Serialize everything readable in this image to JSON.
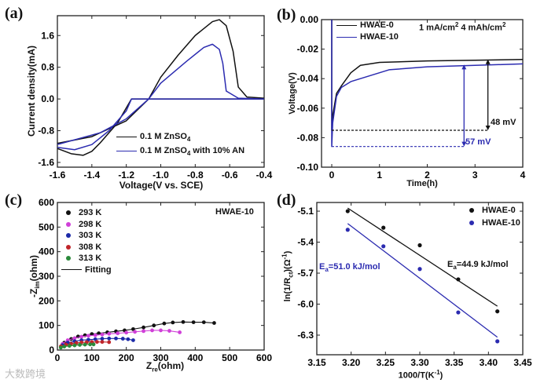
{
  "colors": {
    "black": "#111111",
    "blue": "#2b2bb0",
    "magenta": "#d040d8",
    "navy": "#1c2aa8",
    "red": "#c0252a",
    "green": "#2a8a3a"
  },
  "watermark": "大数跨境",
  "chart_data": [
    {
      "panel": "(a)",
      "type": "line",
      "xlabel": "Voltage(V vs. SCE)",
      "ylabel": "Current density(mA)",
      "xlim": [
        -1.6,
        -0.4
      ],
      "ylim": [
        -1.72,
        2.1
      ],
      "xticks": [
        -1.6,
        -1.4,
        -1.2,
        -1.0,
        -0.8,
        -0.6,
        -0.4
      ],
      "xtick_labels": [
        "-1.6",
        "-1.4",
        "-1.2",
        "-1.0",
        "-0.8",
        "-0.6",
        "-0.4"
      ],
      "yticks": [
        -1.6,
        -0.8,
        0,
        0.8,
        1.6
      ],
      "ytick_labels": [
        "-1.6",
        "-0.8",
        "0.0",
        "0.8",
        "1.6"
      ],
      "legend": [
        {
          "text": "0.1 M ZnSO",
          "sub": "4",
          "suffix": ""
        },
        {
          "text": "0.1 M ZnSO",
          "sub": "4",
          "suffix": " with 10% AN"
        }
      ],
      "series": [
        {
          "name": "0.1 M ZnSO4",
          "color": "#111111",
          "x": [
            -1.6,
            -1.52,
            -1.45,
            -1.4,
            -1.35,
            -1.25,
            -1.17,
            -0.8,
            -0.4,
            -0.4,
            -0.5,
            -0.55,
            -0.58,
            -0.62,
            -0.66,
            -0.7,
            -0.8,
            -0.9,
            -1.0,
            -1.07,
            -1.2,
            -1.4,
            -1.6
          ],
          "y": [
            -1.25,
            -1.38,
            -1.42,
            -1.32,
            -1.1,
            -0.6,
            0,
            0,
            0,
            0.02,
            0.05,
            0.3,
            1.2,
            1.85,
            2.0,
            1.95,
            1.6,
            1.1,
            0.55,
            0,
            -0.55,
            -0.95,
            -1.12
          ]
        },
        {
          "name": "0.1 M ZnSO4 with 10% AN",
          "color": "#2b2bb0",
          "x": [
            -1.6,
            -1.5,
            -1.4,
            -1.3,
            -1.2,
            -1.17,
            -0.8,
            -0.4,
            -0.4,
            -0.55,
            -0.62,
            -0.64,
            -0.66,
            -0.7,
            -0.75,
            -0.85,
            -1.0,
            -1.07,
            -1.2,
            -1.35,
            -1.6
          ],
          "y": [
            -1.22,
            -1.28,
            -1.15,
            -0.8,
            -0.3,
            0,
            0,
            0,
            0,
            0.02,
            0.2,
            0.9,
            1.25,
            1.38,
            1.3,
            0.95,
            0.4,
            0,
            -0.5,
            -0.85,
            -1.15
          ]
        }
      ]
    },
    {
      "panel": "(b)",
      "type": "line",
      "xlabel": "Time(h)",
      "ylabel": "Voltage(V)",
      "xlim": [
        -0.214,
        4
      ],
      "ylim": [
        -0.1,
        0
      ],
      "xticks": [
        0,
        1,
        2,
        3,
        4
      ],
      "xtick_labels": [
        "0",
        "1",
        "2",
        "3",
        "4"
      ],
      "yticks": [
        0,
        -0.02,
        -0.04,
        -0.06,
        -0.08,
        -0.1
      ],
      "ytick_labels": [
        "0.00",
        "-0.02",
        "-0.04",
        "-0.06",
        "-0.08",
        "-0.10"
      ],
      "legend": [
        {
          "text": "HWAE-0"
        },
        {
          "text": "HWAE-10"
        }
      ],
      "condition": {
        "a": "1 mA/cm",
        "a_sup": "2",
        "b": " 4 mAh/cm",
        "b_sup": "2"
      },
      "series": [
        {
          "name": "HWAE-0",
          "color": "#111111",
          "x": [
            0,
            0,
            0.02,
            0.1,
            0.2,
            0.4,
            0.6,
            1,
            2,
            3,
            4
          ],
          "y": [
            0,
            -0.075,
            -0.065,
            -0.05,
            -0.045,
            -0.036,
            -0.031,
            -0.029,
            -0.028,
            -0.0275,
            -0.027
          ]
        },
        {
          "name": "HWAE-10",
          "color": "#2b2bb0",
          "x": [
            0,
            0,
            0.02,
            0.1,
            0.2,
            0.4,
            0.8,
            1.2,
            2,
            3,
            4
          ],
          "y": [
            0,
            -0.086,
            -0.07,
            -0.052,
            -0.046,
            -0.042,
            -0.038,
            -0.034,
            -0.032,
            -0.031,
            -0.03
          ]
        }
      ],
      "annotations": [
        {
          "text": "48 mV",
          "color": "#111111",
          "x": 3.27,
          "y_top": -0.027,
          "y_bottom": -0.075
        },
        {
          "text": "57 mV",
          "color": "#2b2bb0",
          "x": 2.77,
          "y_top": -0.0305,
          "y_bottom": -0.086
        }
      ]
    },
    {
      "panel": "(c)",
      "type": "scatter",
      "xlabel": "Z",
      "xlabel_sub": "re",
      "xlabel_unit": "(ohm)",
      "ylabel": "-Z",
      "ylabel_sub": "im",
      "ylabel_unit": "(ohm)",
      "xlim": [
        0,
        600
      ],
      "ylim": [
        0,
        600
      ],
      "xticks": [
        0,
        100,
        200,
        300,
        400,
        500,
        600
      ],
      "xtick_labels": [
        "0",
        "100",
        "200",
        "300",
        "400",
        "500",
        "600"
      ],
      "yticks": [
        0,
        100,
        200,
        300,
        400,
        500,
        600
      ],
      "ytick_labels": [
        "0",
        "100",
        "200",
        "300",
        "400",
        "500",
        "600"
      ],
      "annotation": "HWAE-10",
      "fit_label": "Fitting",
      "series": [
        {
          "name": "293 K",
          "color": "#111111",
          "x": [
            20,
            40,
            60,
            80,
            100,
            120,
            145,
            170,
            195,
            220,
            250,
            280,
            310,
            335,
            365,
            395,
            425,
            455
          ],
          "y": [
            30,
            45,
            55,
            60,
            65,
            68,
            72,
            76,
            80,
            85,
            92,
            100,
            108,
            112,
            114,
            113,
            113,
            110
          ]
        },
        {
          "name": "298 K",
          "color": "#d040d8",
          "x": [
            15,
            30,
            50,
            70,
            90,
            110,
            130,
            150,
            175,
            200,
            225,
            250,
            275,
            300,
            325,
            355
          ],
          "y": [
            25,
            40,
            48,
            54,
            58,
            60,
            63,
            66,
            68,
            71,
            74,
            77,
            80,
            80,
            78,
            72
          ]
        },
        {
          "name": "303 K",
          "color": "#1c2aa8",
          "x": [
            15,
            30,
            50,
            70,
            90,
            110,
            130,
            150,
            170,
            190,
            205,
            220
          ],
          "y": [
            20,
            30,
            36,
            40,
            42,
            44,
            46,
            47,
            47,
            46,
            44,
            40
          ]
        },
        {
          "name": "308 K",
          "color": "#c0252a",
          "x": [
            10,
            25,
            40,
            55,
            70,
            85,
            100,
            115,
            130,
            150
          ],
          "y": [
            15,
            22,
            26,
            29,
            31,
            32,
            33,
            33,
            33,
            32
          ]
        },
        {
          "name": "313 K",
          "color": "#2a8a3a",
          "x": [
            10,
            20,
            35,
            50,
            65,
            80,
            95,
            105
          ],
          "y": [
            10,
            14,
            17,
            19,
            21,
            22,
            23,
            23
          ]
        }
      ]
    },
    {
      "panel": "(d)",
      "type": "scatter",
      "xlabel": "1000/T(K",
      "xlabel_sup": "-1",
      "xlabel_end": ")",
      "ylabel": "ln(1/R",
      "ylabel_sub": "ct",
      "ylabel_mid": ")(Ω",
      "ylabel_sup": "-1",
      "ylabel_end": ")",
      "xlim": [
        3.15,
        3.45
      ],
      "ylim": [
        -6.49,
        -5.016
      ],
      "xticks": [
        3.15,
        3.2,
        3.25,
        3.3,
        3.35,
        3.4,
        3.45
      ],
      "xtick_labels": [
        "3.15",
        "3.20",
        "3.25",
        "3.30",
        "3.35",
        "3.40",
        "3.45"
      ],
      "yticks": [
        -5.1,
        -5.4,
        -5.7,
        -6.0,
        -6.3
      ],
      "ytick_labels": [
        "-5.1",
        "-5.4",
        "-5.7",
        "-6.0",
        "-6.3"
      ],
      "series": [
        {
          "name": "HWAE-0",
          "color": "#111111",
          "x": [
            3.195,
            3.247,
            3.3,
            3.356,
            3.413
          ],
          "y": [
            -5.1,
            -5.26,
            -5.43,
            -5.76,
            -6.07
          ],
          "fit": {
            "x": [
              3.195,
              3.413
            ],
            "y": [
              -5.07,
              -6.02
            ]
          },
          "ea": "=44.9 kJ/mol"
        },
        {
          "name": "HWAE-10",
          "color": "#2b2bb0",
          "x": [
            3.195,
            3.247,
            3.3,
            3.356,
            3.413
          ],
          "y": [
            -5.28,
            -5.44,
            -5.66,
            -6.08,
            -6.36
          ],
          "fit": {
            "x": [
              3.195,
              3.413
            ],
            "y": [
              -5.22,
              -6.32
            ]
          },
          "ea": "=51.0 kJ/mol"
        }
      ],
      "ea_prefix": "E",
      "ea_sub": "a"
    }
  ]
}
